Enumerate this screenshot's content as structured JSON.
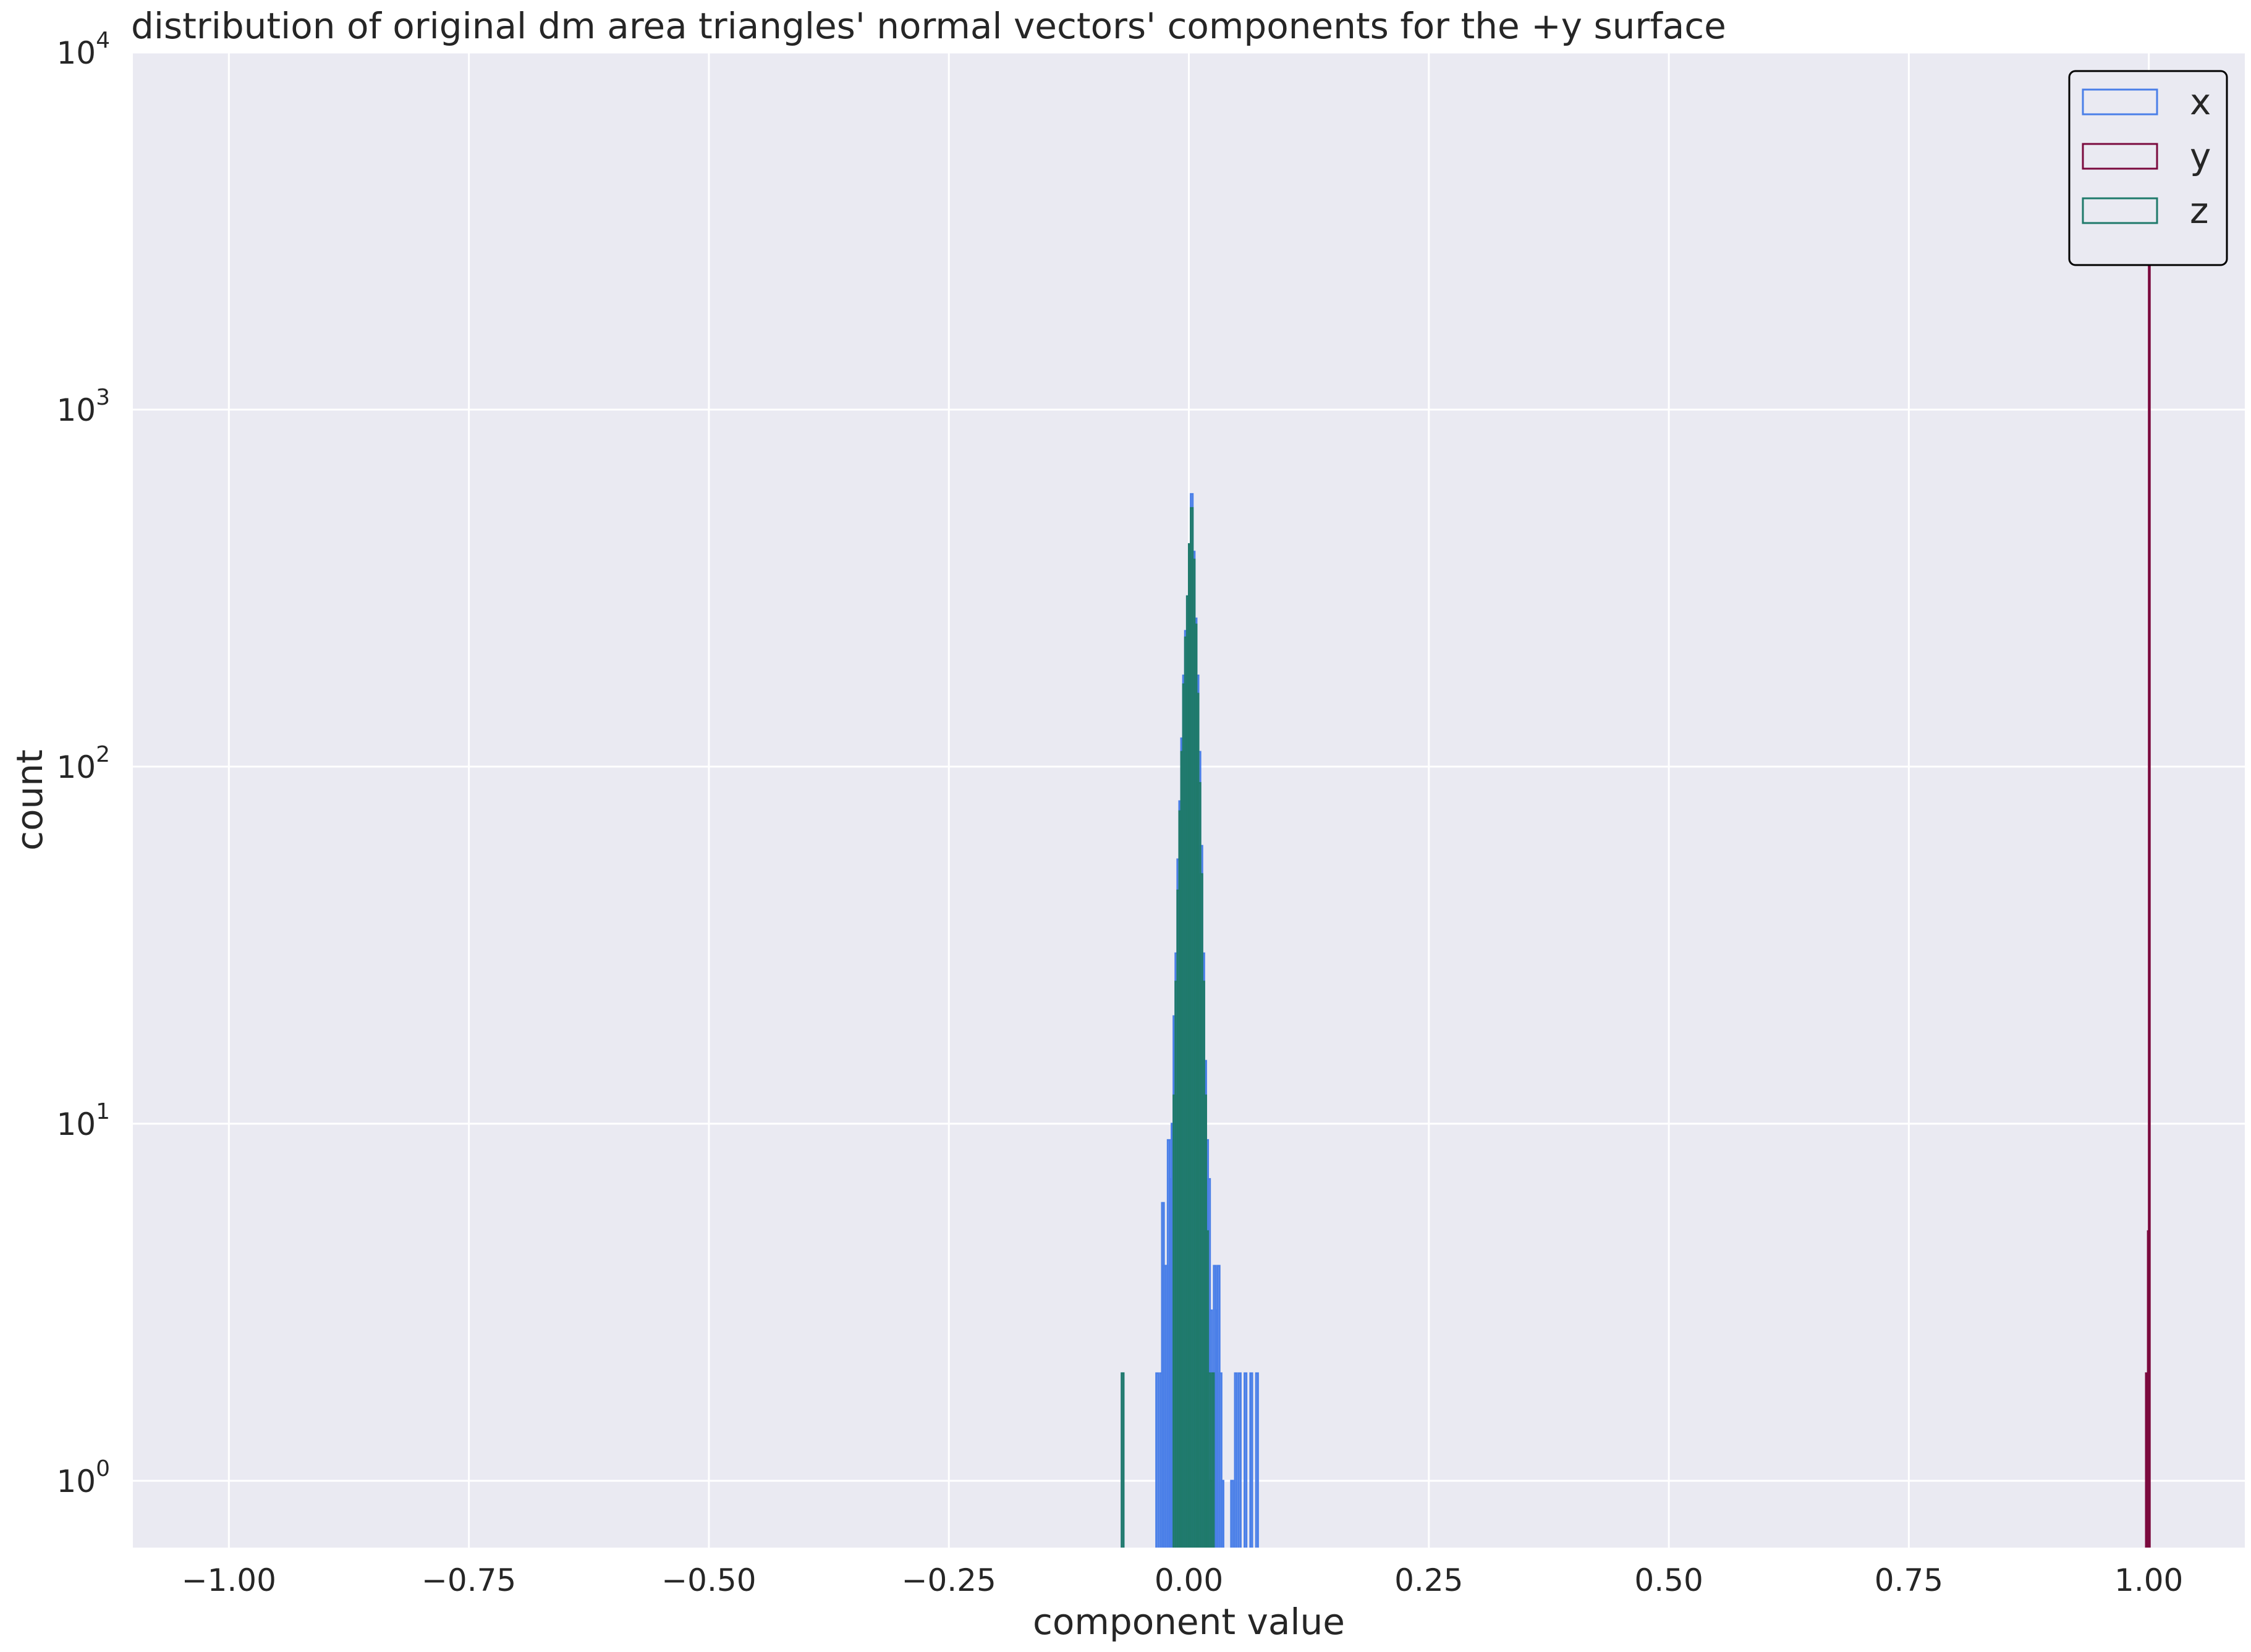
{
  "chart_data": {
    "type": "histogram",
    "title": "distribution of original dm area triangles' normal vectors' components for the +y surface",
    "xlabel": "component value",
    "ylabel": "count",
    "xlim": [
      -1.1,
      1.1
    ],
    "ylim": [
      0.65,
      10000
    ],
    "yscale": "log",
    "grid": true,
    "legend_position": "top-right",
    "x_ticks": [
      {
        "value": -1.0,
        "label": "−1.00"
      },
      {
        "value": -0.75,
        "label": "−0.75"
      },
      {
        "value": -0.5,
        "label": "−0.50"
      },
      {
        "value": -0.25,
        "label": "−0.25"
      },
      {
        "value": 0.0,
        "label": "0.00"
      },
      {
        "value": 0.25,
        "label": "0.25"
      },
      {
        "value": 0.5,
        "label": "0.50"
      },
      {
        "value": 0.75,
        "label": "0.75"
      },
      {
        "value": 1.0,
        "label": "1.00"
      }
    ],
    "y_ticks": [
      {
        "value": 1,
        "base": "10",
        "exp": "0"
      },
      {
        "value": 10,
        "base": "10",
        "exp": "1"
      },
      {
        "value": 100,
        "base": "10",
        "exp": "2"
      },
      {
        "value": 1000,
        "base": "10",
        "exp": "3"
      },
      {
        "value": 10000,
        "base": "10",
        "exp": "4"
      }
    ],
    "series": [
      {
        "name": "x",
        "color": "#4a7fe8",
        "bins": [
          [
            -0.07,
            -0.068,
            2
          ],
          [
            -0.034,
            -0.032,
            2
          ],
          [
            -0.03,
            -0.028,
            2
          ],
          [
            -0.028,
            -0.026,
            6
          ],
          [
            -0.026,
            -0.024,
            4
          ],
          [
            -0.024,
            -0.022,
            4
          ],
          [
            -0.022,
            -0.02,
            9
          ],
          [
            -0.02,
            -0.018,
            7
          ],
          [
            -0.018,
            -0.016,
            10
          ],
          [
            -0.016,
            -0.014,
            20
          ],
          [
            -0.014,
            -0.012,
            30
          ],
          [
            -0.012,
            -0.01,
            55
          ],
          [
            -0.01,
            -0.008,
            80
          ],
          [
            -0.008,
            -0.006,
            120
          ],
          [
            -0.006,
            -0.004,
            180
          ],
          [
            -0.004,
            -0.002,
            240
          ],
          [
            -0.002,
            0.0,
            300
          ],
          [
            0.0,
            0.002,
            380
          ],
          [
            0.002,
            0.004,
            580
          ],
          [
            0.004,
            0.006,
            400
          ],
          [
            0.006,
            0.008,
            260
          ],
          [
            0.008,
            0.01,
            180
          ],
          [
            0.01,
            0.012,
            110
          ],
          [
            0.012,
            0.014,
            60
          ],
          [
            0.014,
            0.016,
            30
          ],
          [
            0.016,
            0.018,
            15
          ],
          [
            0.018,
            0.02,
            9
          ],
          [
            0.02,
            0.022,
            7
          ],
          [
            0.022,
            0.024,
            3
          ],
          [
            0.024,
            0.026,
            2
          ],
          [
            0.026,
            0.028,
            4
          ],
          [
            0.028,
            0.03,
            3
          ],
          [
            0.03,
            0.032,
            4
          ],
          [
            0.032,
            0.034,
            2
          ],
          [
            0.034,
            0.036,
            1
          ],
          [
            0.044,
            0.046,
            1
          ],
          [
            0.048,
            0.05,
            2
          ],
          [
            0.052,
            0.054,
            2
          ],
          [
            0.058,
            0.06,
            2
          ],
          [
            0.064,
            0.066,
            2
          ],
          [
            0.07,
            0.072,
            2
          ]
        ]
      },
      {
        "name": "y",
        "color": "#7b0a3e",
        "bins": [
          [
            0.997,
            0.998,
            2
          ],
          [
            0.998,
            0.999,
            1
          ],
          [
            0.999,
            1.0,
            5
          ],
          [
            1.0,
            1.001,
            3000
          ]
        ]
      },
      {
        "name": "z",
        "color": "#1f7a6b",
        "bins": [
          [
            -0.07,
            -0.068,
            2
          ],
          [
            -0.016,
            -0.014,
            12
          ],
          [
            -0.014,
            -0.012,
            25
          ],
          [
            -0.012,
            -0.01,
            45
          ],
          [
            -0.01,
            -0.008,
            75
          ],
          [
            -0.008,
            -0.006,
            110
          ],
          [
            -0.006,
            -0.004,
            170
          ],
          [
            -0.004,
            -0.002,
            230
          ],
          [
            -0.002,
            0.0,
            300
          ],
          [
            0.0,
            0.002,
            420
          ],
          [
            0.002,
            0.004,
            530
          ],
          [
            0.004,
            0.006,
            380
          ],
          [
            0.006,
            0.008,
            250
          ],
          [
            0.008,
            0.01,
            160
          ],
          [
            0.01,
            0.012,
            90
          ],
          [
            0.012,
            0.014,
            50
          ],
          [
            0.014,
            0.016,
            25
          ],
          [
            0.016,
            0.018,
            12
          ],
          [
            0.018,
            0.02,
            5
          ],
          [
            0.02,
            0.022,
            2
          ],
          [
            0.022,
            0.024,
            1
          ],
          [
            0.024,
            0.026,
            2
          ]
        ]
      }
    ]
  }
}
